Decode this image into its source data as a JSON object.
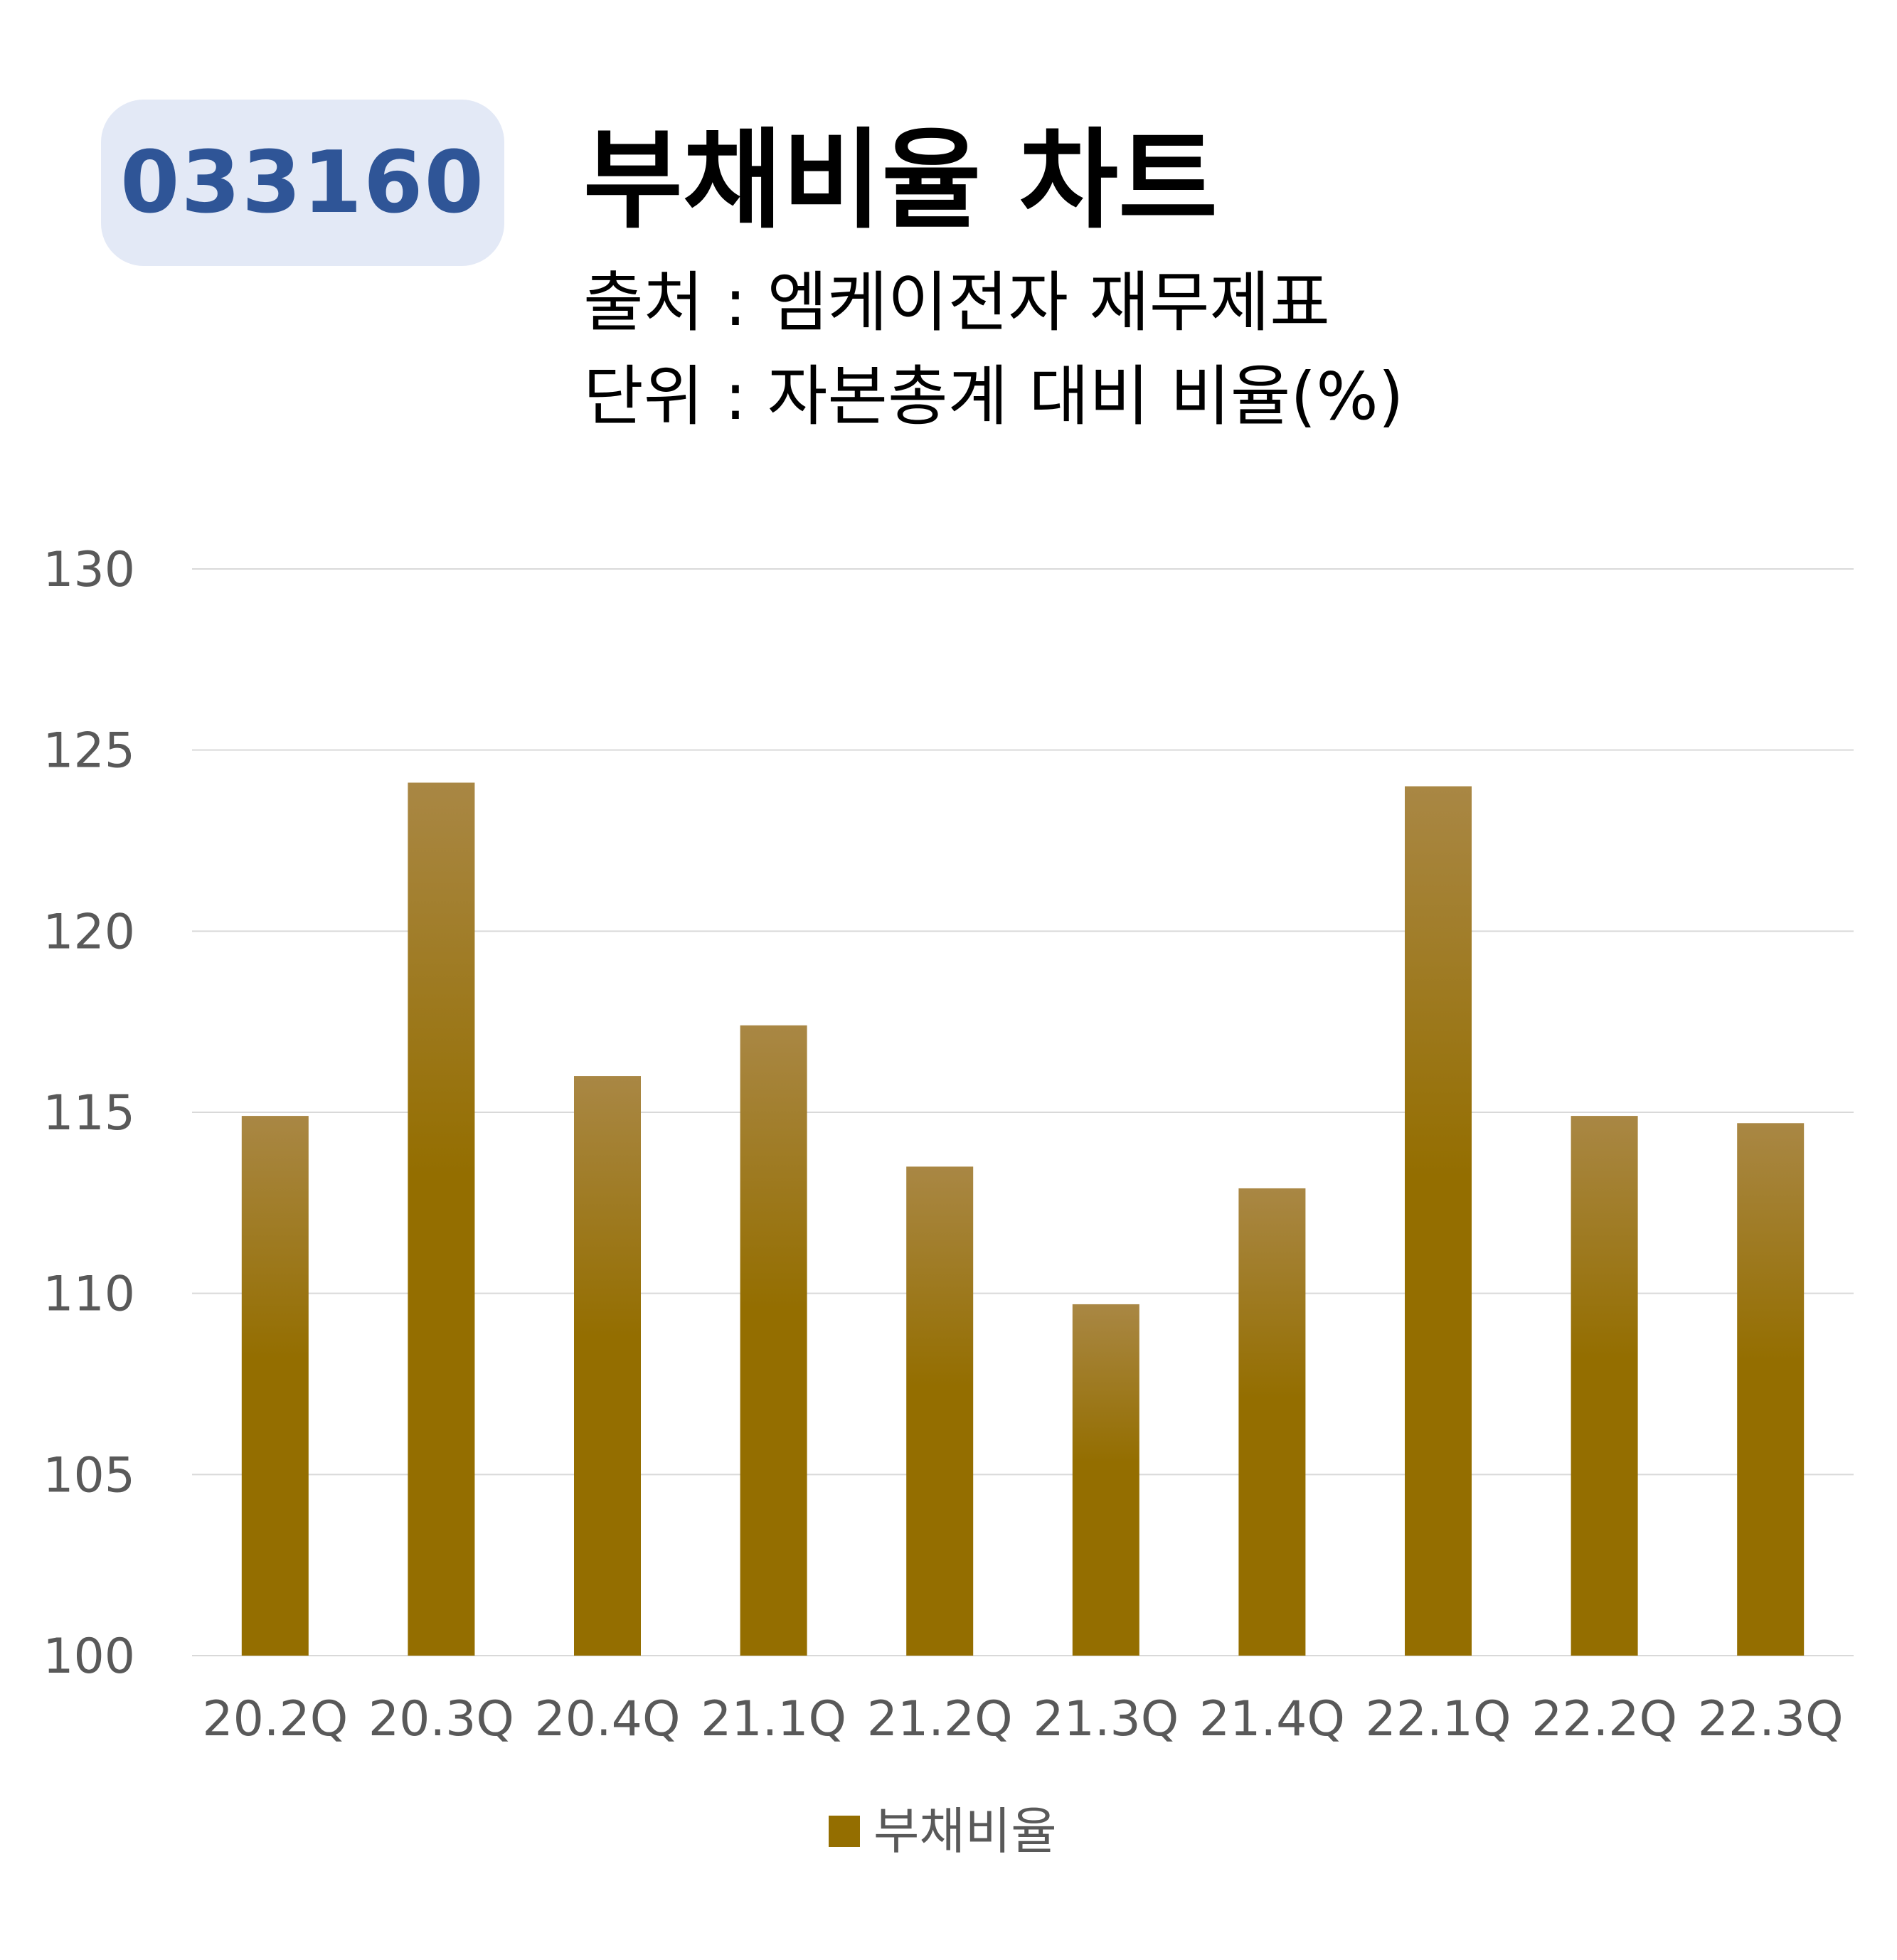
{
  "header": {
    "code": "033160",
    "title": "부채비율 차트",
    "source": "출처 : 엠케이전자 재무제표",
    "unit": "단위 : 자본총계 대비 비율(%)"
  },
  "colors": {
    "bar_top": "#a98744",
    "bar_bottom": "#946e00",
    "grid": "#d9d9d9",
    "badge_bg": "#e3e9f6",
    "badge_text": "#2f5597"
  },
  "chart_data": {
    "type": "bar",
    "categories": [
      "20.2Q",
      "20.3Q",
      "20.4Q",
      "21.1Q",
      "21.2Q",
      "21.3Q",
      "21.4Q",
      "22.1Q",
      "22.2Q",
      "22.3Q"
    ],
    "series": [
      {
        "name": "부채비율",
        "values": [
          114.9,
          124.1,
          116.0,
          117.4,
          113.5,
          109.7,
          112.9,
          124.0,
          114.9,
          114.7
        ]
      }
    ],
    "ylim": [
      100,
      130
    ],
    "yticks": [
      100,
      105,
      110,
      115,
      120,
      125,
      130
    ],
    "grid": true,
    "legend_position": "bottom"
  }
}
